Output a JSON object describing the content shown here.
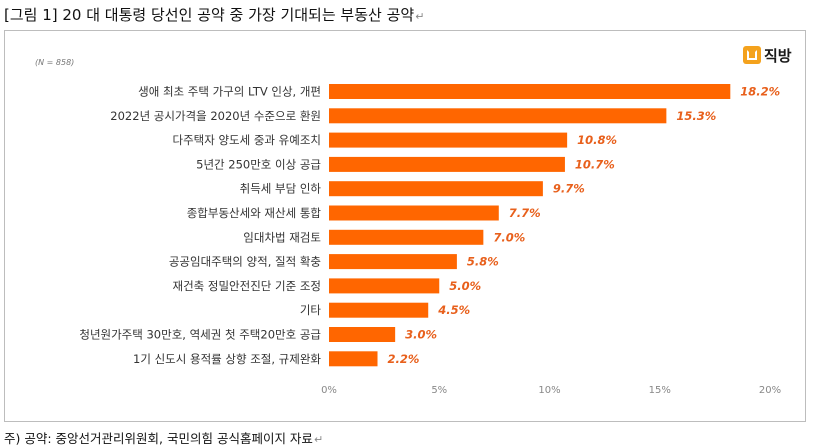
{
  "title": "[그림 1] 20 대 대통령 당선인 공약 중 가장 기대되는 부동산 공약",
  "return_mark": "↵",
  "sample_size": "(N = 858)",
  "logo": {
    "text": "직방",
    "icon": "zigbang-house-logo-icon",
    "color": "#f4a21d"
  },
  "footnote": "주) 공약: 중앙선거관리위원회, 국민의힘 공식홈페이지 자료",
  "colors": {
    "bar": "#ff6600",
    "value_label": "#e8601c",
    "axis_text": "#888888",
    "category_text": "#333333"
  },
  "chart_data": {
    "type": "bar",
    "orientation": "horizontal",
    "categories": [
      "생애 최초 주택 가구의 LTV 인상, 개편",
      "2022년 공시가격을 2020년 수준으로 환원",
      "다주택자 양도세 중과 유예조치",
      "5년간 250만호 이상 공급",
      "취득세 부담 인하",
      "종합부동산세와 재산세 통합",
      "임대차법 재검토",
      "공공임대주택의 양적, 질적 확충",
      "재건축 정밀안전진단 기준 조정",
      "기타",
      "청년원가주택 30만호, 역세권 첫 주택20만호 공급",
      "1기 신도시 용적률 상향 조절, 규제완화"
    ],
    "values": [
      18.2,
      15.3,
      10.8,
      10.7,
      9.7,
      7.7,
      7.0,
      5.8,
      5.0,
      4.5,
      3.0,
      2.2
    ],
    "value_labels": [
      "18.2%",
      "15.3%",
      "10.8%",
      "10.7%",
      "9.7%",
      "7.7%",
      "7.0%",
      "5.8%",
      "5.0%",
      "4.5%",
      "3.0%",
      "2.2%"
    ],
    "x_ticks": [
      0,
      5,
      10,
      15,
      20
    ],
    "x_tick_labels": [
      "0%",
      "5%",
      "10%",
      "15%",
      "20%"
    ],
    "xlim": [
      0,
      20
    ],
    "grid": false,
    "legend": "none"
  }
}
